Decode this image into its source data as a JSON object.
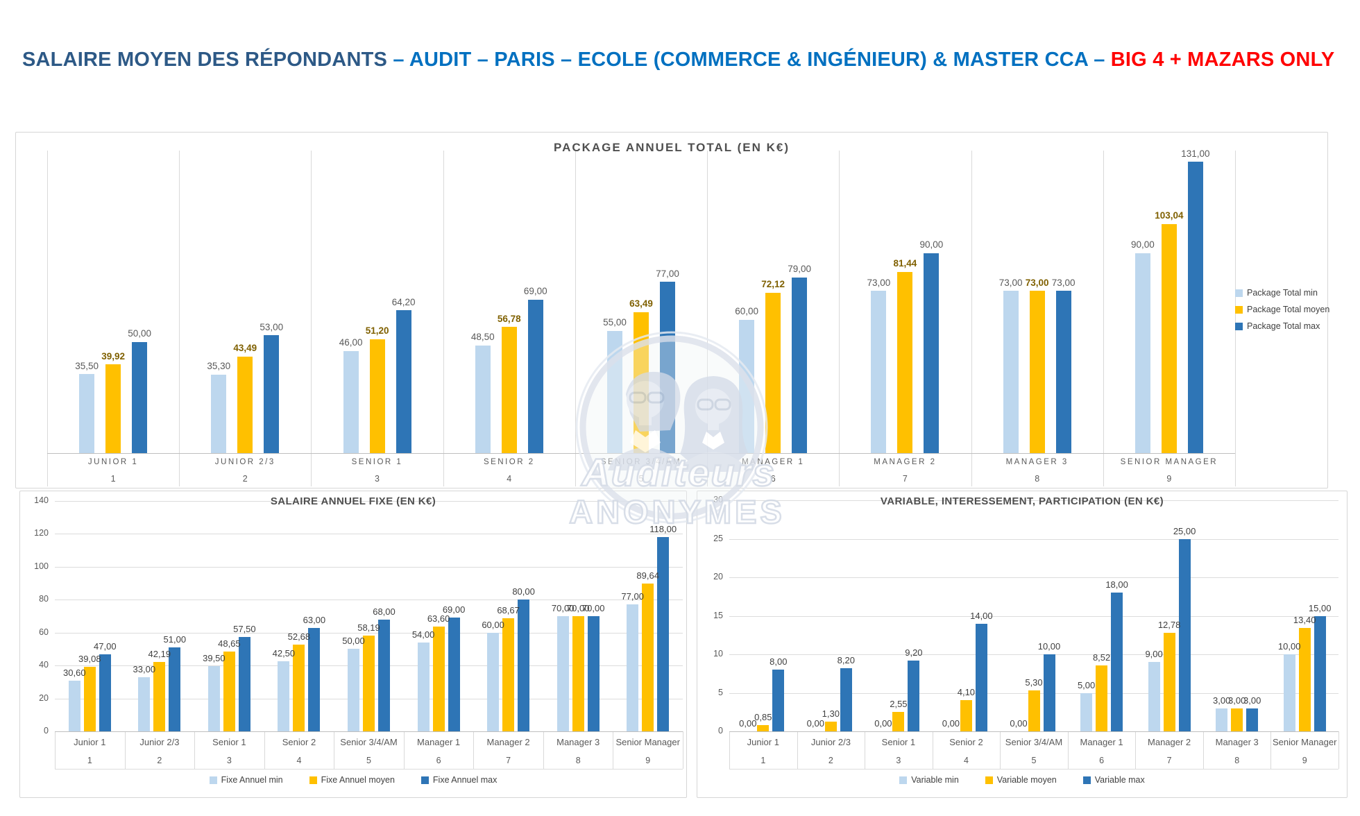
{
  "header": {
    "part1": "SALAIRE MOYEN DES RÉPONDANTS ",
    "part2": "– AUDIT – PARIS – ECOLE (COMMERCE & INGÉNIEUR) & MASTER CCA – ",
    "part3": "BIG 4 + MAZARS ONLY",
    "colors": {
      "part1": "#2d5986",
      "part2": "#0070c0",
      "part3": "#ff0000"
    }
  },
  "watermark": {
    "line1": "Auditeurs",
    "line2": "ANONYMES"
  },
  "palette": {
    "min": "#BDD7EE",
    "moyen": "#FFC000",
    "max": "#2E75B6",
    "value_label": "#595959",
    "value_label_dark": "#404040",
    "moyen_label_top": "#7F6000",
    "grid": "#D9D9D9",
    "axis_line": "#BFBFBF",
    "title_text": "#4F4F4F"
  },
  "chart_data": [
    {
      "id": "package",
      "type": "bar",
      "title": "PACKAGE ANNUEL TOTAL (EN K€)",
      "categories": [
        "JUNIOR 1",
        "JUNIOR 2/3",
        "SENIOR 1",
        "SENIOR 2",
        "SENIOR 3/4/AM",
        "MANAGER 1",
        "MANAGER 2",
        "MANAGER 3",
        "SENIOR MANAGER"
      ],
      "category_numbers": [
        "1",
        "2",
        "3",
        "4",
        "5",
        "6",
        "7",
        "8",
        "9"
      ],
      "ylim": [
        0,
        136
      ],
      "grid": false,
      "legend_position": "right",
      "series": [
        {
          "name": "Package Total min",
          "values": [
            35.5,
            35.3,
            46,
            48.5,
            55,
            60,
            73,
            73,
            90
          ],
          "labels": [
            "35,50",
            "35,30",
            "46,00",
            "48,50",
            "55,00",
            "60,00",
            "73,00",
            "73,00",
            "90,00"
          ]
        },
        {
          "name": "Package Total moyen",
          "values": [
            39.92,
            43.49,
            51.2,
            56.78,
            63.49,
            72.12,
            81.44,
            73,
            103.04
          ],
          "labels": [
            "39,92",
            "43,49",
            "51,20",
            "56,78",
            "63,49",
            "72,12",
            "81,44",
            "73,00",
            "103,04"
          ]
        },
        {
          "name": "Package Total max",
          "values": [
            50,
            53,
            64.2,
            69,
            77,
            79,
            90,
            73,
            131
          ],
          "labels": [
            "50,00",
            "53,00",
            "64,20",
            "69,00",
            "77,00",
            "79,00",
            "90,00",
            "73,00",
            "131,00"
          ]
        }
      ]
    },
    {
      "id": "fixe",
      "type": "bar",
      "title": "SALAIRE ANNUEL FIXE (EN K€)",
      "categories": [
        "Junior 1",
        "Junior 2/3",
        "Senior 1",
        "Senior 2",
        "Senior 3/4/AM",
        "Manager 1",
        "Manager 2",
        "Manager 3",
        "Senior Manager"
      ],
      "category_numbers": [
        "1",
        "2",
        "3",
        "4",
        "5",
        "6",
        "7",
        "8",
        "9"
      ],
      "ylim": [
        0,
        140
      ],
      "yticks": [
        0,
        20,
        40,
        60,
        80,
        100,
        120,
        140
      ],
      "ytick_labels": [
        "0",
        "20",
        "40",
        "60",
        "80",
        "100",
        "120",
        "140"
      ],
      "grid": true,
      "legend_position": "bottom",
      "series": [
        {
          "name": "Fixe Annuel min",
          "values": [
            30.6,
            33,
            39.5,
            42.5,
            50,
            54,
            60,
            70,
            77
          ],
          "labels": [
            "30,60",
            "33,00",
            "39,50",
            "42,50",
            "50,00",
            "54,00",
            "60,00",
            "70,00",
            "77,00"
          ]
        },
        {
          "name": "Fixe Annuel moyen",
          "values": [
            39.08,
            42.19,
            48.65,
            52.68,
            58.19,
            63.6,
            68.67,
            70,
            89.64
          ],
          "labels": [
            "39,08",
            "42,19",
            "48,65",
            "52,68",
            "58,19",
            "63,60",
            "68,67",
            "70,00",
            "89,64"
          ]
        },
        {
          "name": "Fixe Annuel max",
          "values": [
            47,
            51,
            57.5,
            63,
            68,
            69,
            80,
            70,
            118
          ],
          "labels": [
            "47,00",
            "51,00",
            "57,50",
            "63,00",
            "68,00",
            "69,00",
            "80,00",
            "70,00",
            "118,00"
          ]
        }
      ]
    },
    {
      "id": "variable",
      "type": "bar",
      "title": "VARIABLE, INTERESSEMENT, PARTICIPATION (EN K€)",
      "categories": [
        "Junior 1",
        "Junior 2/3",
        "Senior 1",
        "Senior 2",
        "Senior 3/4/AM",
        "Manager 1",
        "Manager 2",
        "Manager 3",
        "Senior Manager"
      ],
      "category_numbers": [
        "1",
        "2",
        "3",
        "4",
        "5",
        "6",
        "7",
        "8",
        "9"
      ],
      "ylim": [
        0,
        30
      ],
      "yticks": [
        0,
        5,
        10,
        15,
        20,
        25,
        30
      ],
      "ytick_labels": [
        "0",
        "5",
        "10",
        "15",
        "20",
        "25",
        "30"
      ],
      "grid": true,
      "legend_position": "bottom",
      "series": [
        {
          "name": "Variable min",
          "values": [
            0,
            0,
            0,
            0,
            0,
            5,
            9,
            3,
            10
          ],
          "labels": [
            "0,00",
            "0,00",
            "0,00",
            "0,00",
            "0,00",
            "5,00",
            "9,00",
            "3,00",
            "10,00"
          ]
        },
        {
          "name": "Variable moyen",
          "values": [
            0.85,
            1.3,
            2.55,
            4.1,
            5.3,
            8.52,
            12.78,
            3,
            13.4
          ],
          "labels": [
            "0,85",
            "1,30",
            "2,55",
            "4,10",
            "5,30",
            "8,52",
            "12,78",
            "3,00",
            "13,40"
          ]
        },
        {
          "name": "Variable max",
          "values": [
            8,
            8.2,
            9.2,
            14,
            10,
            18,
            25,
            3,
            15
          ],
          "labels": [
            "8,00",
            "8,20",
            "9,20",
            "14,00",
            "10,00",
            "18,00",
            "25,00",
            "3,00",
            "15,00"
          ]
        }
      ]
    }
  ]
}
